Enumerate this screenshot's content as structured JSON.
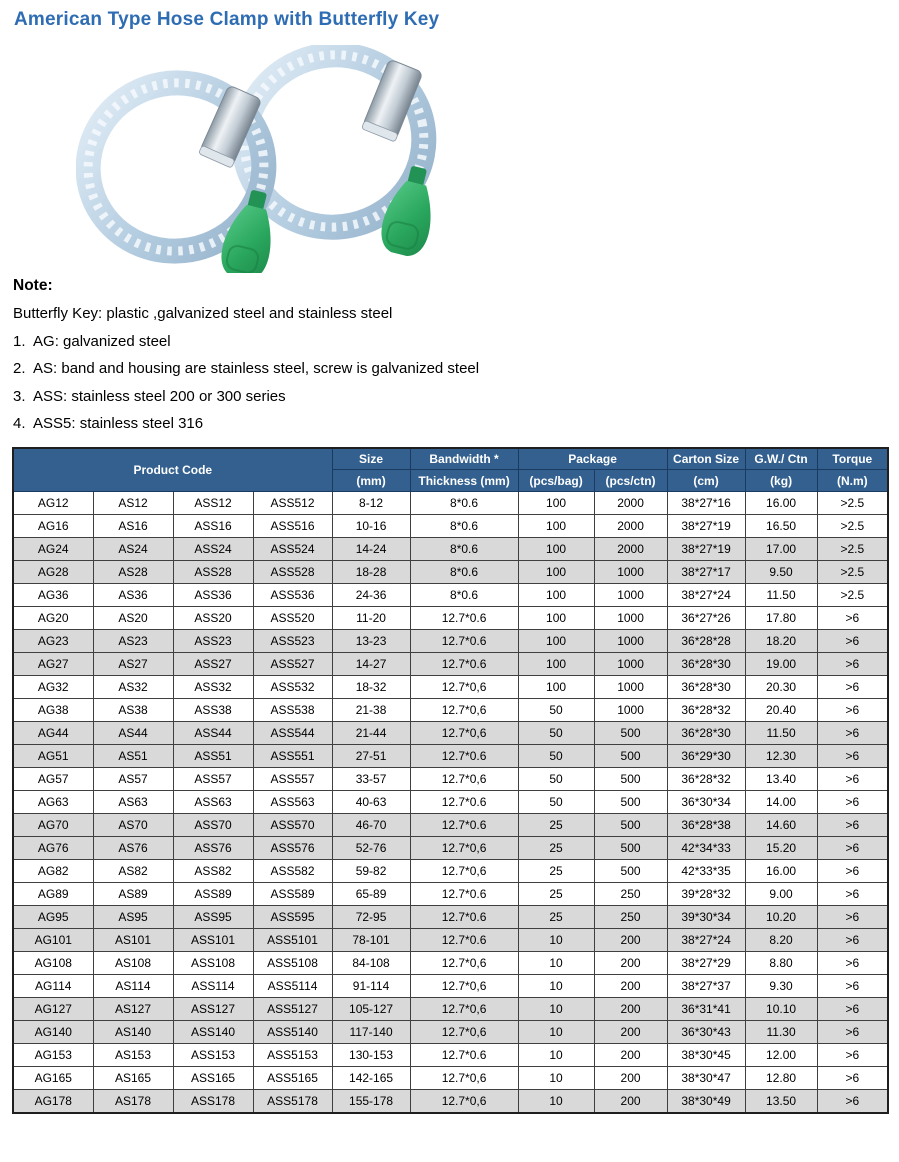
{
  "title": "American Type Hose Clamp with Butterfly Key",
  "product_image": {
    "description": "Two American type perforated-band hose clamps with green butterfly keys",
    "band_color": "#b7cfe2",
    "key_color": "#2aa75e"
  },
  "note": {
    "heading": "Note:",
    "lines": [
      "Butterfly Key: plastic ,galvanized steel and stainless steel",
      "1.  AG: galvanized steel",
      "2.  AS: band and housing are stainless steel, screw is galvanized steel",
      "3.  ASS: stainless steel 200 or 300 series",
      "4.  ASS5: stainless steel 316"
    ]
  },
  "table": {
    "header": {
      "product_code": "Product Code",
      "size_top": "Size",
      "size_bottom": "(mm)",
      "bandwidth_top": "Bandwidth *",
      "bandwidth_bottom": "Thickness (mm)",
      "package_top": "Package",
      "package_bag": "(pcs/bag)",
      "package_ctn": "(pcs/ctn)",
      "carton_top": "Carton Size",
      "carton_bottom": "(cm)",
      "gw_top": "G.W./ Ctn",
      "gw_bottom": "(kg)",
      "torque_top": "Torque",
      "torque_bottom": "(N.m)"
    },
    "rows": [
      [
        "AG12",
        "AS12",
        "ASS12",
        "ASS512",
        "8-12",
        "8*0.6",
        "100",
        "2000",
        "38*27*16",
        "16.00",
        ">2.5"
      ],
      [
        "AG16",
        "AS16",
        "ASS16",
        "ASS516",
        "10-16",
        "8*0.6",
        "100",
        "2000",
        "38*27*19",
        "16.50",
        ">2.5"
      ],
      [
        "AG24",
        "AS24",
        "ASS24",
        "ASS524",
        "14-24",
        "8*0.6",
        "100",
        "2000",
        "38*27*19",
        "17.00",
        ">2.5"
      ],
      [
        "AG28",
        "AS28",
        "ASS28",
        "ASS528",
        "18-28",
        "8*0.6",
        "100",
        "1000",
        "38*27*17",
        "9.50",
        ">2.5"
      ],
      [
        "AG36",
        "AS36",
        "ASS36",
        "ASS536",
        "24-36",
        "8*0.6",
        "100",
        "1000",
        "38*27*24",
        "11.50",
        ">2.5"
      ],
      [
        "AG20",
        "AS20",
        "ASS20",
        "ASS520",
        "11-20",
        "12.7*0.6",
        "100",
        "1000",
        "36*27*26",
        "17.80",
        ">6"
      ],
      [
        "AG23",
        "AS23",
        "ASS23",
        "ASS523",
        "13-23",
        "12.7*0.6",
        "100",
        "1000",
        "36*28*28",
        "18.20",
        ">6"
      ],
      [
        "AG27",
        "AS27",
        "ASS27",
        "ASS527",
        "14-27",
        "12.7*0.6",
        "100",
        "1000",
        "36*28*30",
        "19.00",
        ">6"
      ],
      [
        "AG32",
        "AS32",
        "ASS32",
        "ASS532",
        "18-32",
        "12.7*0,6",
        "100",
        "1000",
        "36*28*30",
        "20.30",
        ">6"
      ],
      [
        "AG38",
        "AS38",
        "ASS38",
        "ASS538",
        "21-38",
        "12.7*0,6",
        "50",
        "1000",
        "36*28*32",
        "20.40",
        ">6"
      ],
      [
        "AG44",
        "AS44",
        "ASS44",
        "ASS544",
        "21-44",
        "12.7*0,6",
        "50",
        "500",
        "36*28*30",
        "11.50",
        ">6"
      ],
      [
        "AG51",
        "AS51",
        "ASS51",
        "ASS551",
        "27-51",
        "12.7*0.6",
        "50",
        "500",
        "36*29*30",
        "12.30",
        ">6"
      ],
      [
        "AG57",
        "AS57",
        "ASS57",
        "ASS557",
        "33-57",
        "12.7*0,6",
        "50",
        "500",
        "36*28*32",
        "13.40",
        ">6"
      ],
      [
        "AG63",
        "AS63",
        "ASS63",
        "ASS563",
        "40-63",
        "12.7*0.6",
        "50",
        "500",
        "36*30*34",
        "14.00",
        ">6"
      ],
      [
        "AG70",
        "AS70",
        "ASS70",
        "ASS570",
        "46-70",
        "12.7*0.6",
        "25",
        "500",
        "36*28*38",
        "14.60",
        ">6"
      ],
      [
        "AG76",
        "AS76",
        "ASS76",
        "ASS576",
        "52-76",
        "12.7*0,6",
        "25",
        "500",
        "42*34*33",
        "15.20",
        ">6"
      ],
      [
        "AG82",
        "AS82",
        "ASS82",
        "ASS582",
        "59-82",
        "12.7*0,6",
        "25",
        "500",
        "42*33*35",
        "16.00",
        ">6"
      ],
      [
        "AG89",
        "AS89",
        "ASS89",
        "ASS589",
        "65-89",
        "12.7*0.6",
        "25",
        "250",
        "39*28*32",
        "9.00",
        ">6"
      ],
      [
        "AG95",
        "AS95",
        "ASS95",
        "ASS595",
        "72-95",
        "12.7*0.6",
        "25",
        "250",
        "39*30*34",
        "10.20",
        ">6"
      ],
      [
        "AG101",
        "AS101",
        "ASS101",
        "ASS5101",
        "78-101",
        "12.7*0.6",
        "10",
        "200",
        "38*27*24",
        "8.20",
        ">6"
      ],
      [
        "AG108",
        "AS108",
        "ASS108",
        "ASS5108",
        "84-108",
        "12.7*0,6",
        "10",
        "200",
        "38*27*29",
        "8.80",
        ">6"
      ],
      [
        "AG114",
        "AS114",
        "ASS114",
        "ASS5114",
        "91-114",
        "12.7*0,6",
        "10",
        "200",
        "38*27*37",
        "9.30",
        ">6"
      ],
      [
        "AG127",
        "AS127",
        "ASS127",
        "ASS5127",
        "105-127",
        "12.7*0,6",
        "10",
        "200",
        "36*31*41",
        "10.10",
        ">6"
      ],
      [
        "AG140",
        "AS140",
        "ASS140",
        "ASS5140",
        "117-140",
        "12.7*0,6",
        "10",
        "200",
        "36*30*43",
        "11.30",
        ">6"
      ],
      [
        "AG153",
        "AS153",
        "ASS153",
        "ASS5153",
        "130-153",
        "12.7*0.6",
        "10",
        "200",
        "38*30*45",
        "12.00",
        ">6"
      ],
      [
        "AG165",
        "AS165",
        "ASS165",
        "ASS5165",
        "142-165",
        "12.7*0,6",
        "10",
        "200",
        "38*30*47",
        "12.80",
        ">6"
      ],
      [
        "AG178",
        "AS178",
        "ASS178",
        "ASS5178",
        "155-178",
        "12.7*0,6",
        "10",
        "200",
        "38*30*49",
        "13.50",
        ">6"
      ]
    ]
  },
  "colors": {
    "title_blue": "#2E6CB3",
    "header_bg": "#33608F",
    "header_border": "#1b3a5f",
    "shaded_row": "#D9D9D9",
    "grid_line": "#3f3f3f"
  }
}
